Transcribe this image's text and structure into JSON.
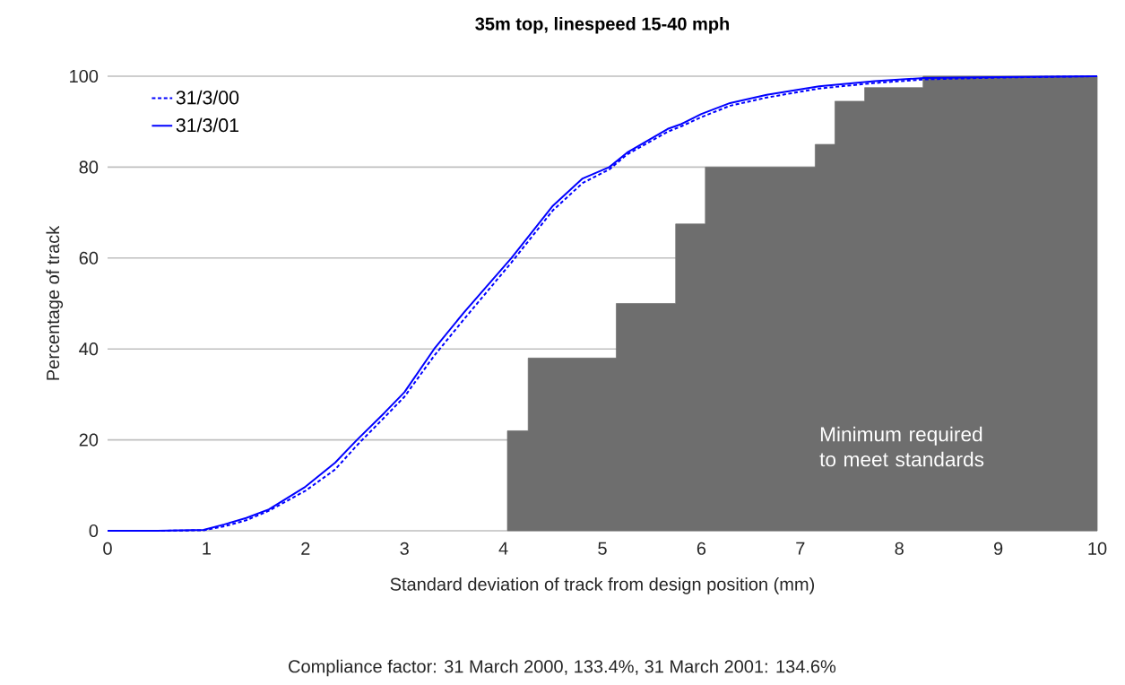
{
  "chart_data": {
    "type": "line",
    "title": "35m top, linespeed 15-40 mph",
    "xlabel": "Standard deviation of track from design position (mm)",
    "ylabel": "Percentage of track",
    "xlim": [
      0,
      10
    ],
    "xticks": [
      0,
      1,
      2,
      3,
      4,
      5,
      6,
      7,
      8,
      9,
      10
    ],
    "ylim": [
      0,
      100
    ],
    "yticks": [
      0,
      20,
      40,
      60,
      80,
      100
    ],
    "grid": "y",
    "legend": "top left",
    "annotations": [
      "Compliance factor:  31 March 2000, 133.4%,  31 March 2001: 134.6%"
    ],
    "series": [
      {
        "type": "area",
        "name": "Minimum required to meet standards",
        "color": "#6e6e6e",
        "x": [
          4.04,
          4.25,
          4.25,
          5.14,
          5.14,
          5.74,
          5.74,
          6.04,
          6.04,
          7.15,
          7.15,
          7.35,
          7.35,
          7.65,
          7.65,
          8.24,
          8.24,
          10
        ],
        "values": [
          22,
          22,
          38,
          38,
          50,
          50,
          67.5,
          67.5,
          80,
          80,
          85,
          85,
          94.5,
          94.5,
          97.5,
          97.5,
          100,
          100
        ]
      },
      {
        "name": "31/3/00",
        "color": "#0000ff",
        "line_style": "dotted",
        "x": [
          0,
          0.5,
          0.97,
          1.18,
          1.4,
          1.63,
          2.0,
          2.3,
          2.52,
          2.8,
          3.0,
          3.3,
          3.6,
          4.08,
          4.5,
          4.8,
          5.07,
          5.25,
          5.66,
          5.8,
          6.0,
          6.29,
          6.66,
          7.19,
          7.75,
          8.25,
          9.0,
          10
        ],
        "values": [
          0,
          0,
          0.1,
          1.0,
          2.3,
          4.4,
          8.8,
          13.5,
          18.8,
          25,
          29.5,
          38.5,
          46.5,
          59,
          70.5,
          76.5,
          79.5,
          82.8,
          87.8,
          89,
          91,
          93.5,
          95.3,
          97.3,
          98.5,
          99.3,
          99.7,
          100
        ]
      },
      {
        "name": "31/3/01",
        "color": "#0000ff",
        "line_style": "solid",
        "x": [
          0,
          0.5,
          0.97,
          1.18,
          1.4,
          1.63,
          2.0,
          2.3,
          2.52,
          2.8,
          3.0,
          3.3,
          3.6,
          4.08,
          4.5,
          4.8,
          5.07,
          5.25,
          5.66,
          5.8,
          6.0,
          6.29,
          6.66,
          7.19,
          7.75,
          8.25,
          9.0,
          10
        ],
        "values": [
          0,
          0,
          0.2,
          1.4,
          2.8,
          4.7,
          9.7,
          15,
          20,
          26,
          30.5,
          40,
          48,
          60,
          71.5,
          77.5,
          80,
          83.2,
          88.4,
          89.5,
          91.7,
          94.1,
          95.9,
          97.8,
          98.9,
          99.6,
          99.8,
          100
        ]
      }
    ]
  }
}
